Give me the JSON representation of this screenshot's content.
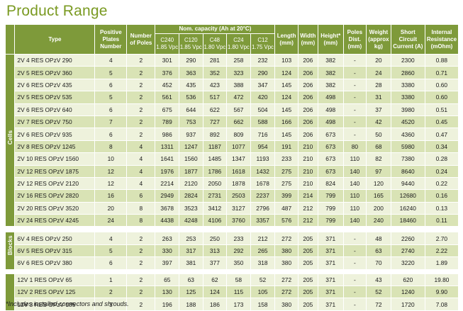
{
  "title": "Product Range",
  "header": {
    "type": "Type",
    "positive_plates": "Positive Plates Number",
    "poles": "Number of Poles",
    "nom_capacity": "Nom. capacity (Ah at 20°C)",
    "c_labels": [
      "C240",
      "C120",
      "C48",
      "C24",
      "C12"
    ],
    "c_sub": [
      "1.85 Vpc",
      "1.85 Vpc",
      "1.80 Vpc",
      "1.80 Vpc",
      "1.75 Vpc"
    ],
    "length": "Length (mm)",
    "width": "Width (mm)",
    "height": "Height* (mm)",
    "poles_dist": "Poles Dist. (mm)",
    "weight": "Weight (approx kg)",
    "short_circuit": "Short Circuit Current (A)",
    "internal_resistance": "Internal Resistance (mOhm)"
  },
  "groups": [
    {
      "label": "Cells",
      "rows": [
        [
          "2V  4 RES OPzV 290",
          "4",
          "2",
          "301",
          "290",
          "281",
          "258",
          "232",
          "103",
          "206",
          "382",
          "-",
          "20",
          "2300",
          "0.88"
        ],
        [
          "2V  5 RES OPzV 360",
          "5",
          "2",
          "376",
          "363",
          "352",
          "323",
          "290",
          "124",
          "206",
          "382",
          "-",
          "24",
          "2860",
          "0.71"
        ],
        [
          "2V  6 RES OPzV 435",
          "6",
          "2",
          "452",
          "435",
          "423",
          "388",
          "347",
          "145",
          "206",
          "382",
          "-",
          "28",
          "3380",
          "0.60"
        ],
        [
          "2V  5 RES OPzV 535",
          "5",
          "2",
          "561",
          "536",
          "517",
          "472",
          "420",
          "124",
          "206",
          "498",
          "-",
          "31",
          "3380",
          "0.60"
        ],
        [
          "2V  6 RES OPzV 640",
          "6",
          "2",
          "675",
          "644",
          "622",
          "567",
          "504",
          "145",
          "206",
          "498",
          "-",
          "37",
          "3980",
          "0.51"
        ],
        [
          "2V  7 RES OPzV 750",
          "7",
          "2",
          "789",
          "753",
          "727",
          "662",
          "588",
          "166",
          "206",
          "498",
          "-",
          "42",
          "4520",
          "0.45"
        ],
        [
          "2V  6 RES OPzV 935",
          "6",
          "2",
          "986",
          "937",
          "892",
          "809",
          "716",
          "145",
          "206",
          "673",
          "-",
          "50",
          "4360",
          "0.47"
        ],
        [
          "2V  8 RES OPzV 1245",
          "8",
          "4",
          "1311",
          "1247",
          "1187",
          "1077",
          "954",
          "191",
          "210",
          "673",
          "80",
          "68",
          "5980",
          "0.34"
        ],
        [
          "2V 10 RES OPzV 1560",
          "10",
          "4",
          "1641",
          "1560",
          "1485",
          "1347",
          "1193",
          "233",
          "210",
          "673",
          "110",
          "82",
          "7380",
          "0.28"
        ],
        [
          "2V 12 RES OPzV 1875",
          "12",
          "4",
          "1976",
          "1877",
          "1786",
          "1618",
          "1432",
          "275",
          "210",
          "673",
          "140",
          "97",
          "8640",
          "0.24"
        ],
        [
          "2V 12 RES OPzV 2120",
          "12",
          "4",
          "2214",
          "2120",
          "2050",
          "1878",
          "1678",
          "275",
          "210",
          "824",
          "140",
          "120",
          "9440",
          "0.22"
        ],
        [
          "2V 16 RES OPzV 2820",
          "16",
          "6",
          "2949",
          "2824",
          "2731",
          "2503",
          "2237",
          "399",
          "214",
          "799",
          "110",
          "165",
          "12680",
          "0.16"
        ],
        [
          "2V 20 RES OPzV 3520",
          "20",
          "8",
          "3678",
          "3523",
          "3412",
          "3127",
          "2796",
          "487",
          "212",
          "799",
          "110",
          "200",
          "16240",
          "0.13"
        ],
        [
          "2V 24 RES OPzV 4245",
          "24",
          "8",
          "4438",
          "4248",
          "4106",
          "3760",
          "3357",
          "576",
          "212",
          "799",
          "140",
          "240",
          "18460",
          "0.11"
        ]
      ]
    },
    {
      "label": "Blocks",
      "rows": [
        [
          "6V  4 RES OPzV 250",
          "4",
          "2",
          "263",
          "253",
          "250",
          "233",
          "212",
          "272",
          "205",
          "371",
          "-",
          "48",
          "2260",
          "2.70"
        ],
        [
          "6V  5 RES OPzV 315",
          "5",
          "2",
          "330",
          "317",
          "313",
          "292",
          "265",
          "380",
          "205",
          "371",
          "-",
          "63",
          "2740",
          "2.22"
        ],
        [
          "6V  6 RES OPzV 380",
          "6",
          "2",
          "397",
          "381",
          "377",
          "350",
          "318",
          "380",
          "205",
          "371",
          "-",
          "70",
          "3220",
          "1.89"
        ]
      ]
    },
    {
      "label": "",
      "rows": [
        [
          "12V  1 RES OPzV 65",
          "1",
          "2",
          "65",
          "63",
          "62",
          "58",
          "52",
          "272",
          "205",
          "371",
          "-",
          "43",
          "620",
          "19.80"
        ],
        [
          "12V  2 RES OPzV 125",
          "2",
          "2",
          "130",
          "125",
          "124",
          "115",
          "105",
          "272",
          "205",
          "371",
          "-",
          "52",
          "1240",
          "9.90"
        ],
        [
          "12V  3 RES OPzV 185",
          "3",
          "2",
          "196",
          "188",
          "186",
          "173",
          "158",
          "380",
          "205",
          "371",
          "-",
          "72",
          "1720",
          "7.08"
        ]
      ]
    }
  ],
  "footnote": "*Includes installed connectors and shrouds.",
  "colors": {
    "title": "#7a9a22",
    "header_bg": "#7e9a3a",
    "row_light": "#eef2dc",
    "row_dark": "#d9e3b5"
  }
}
